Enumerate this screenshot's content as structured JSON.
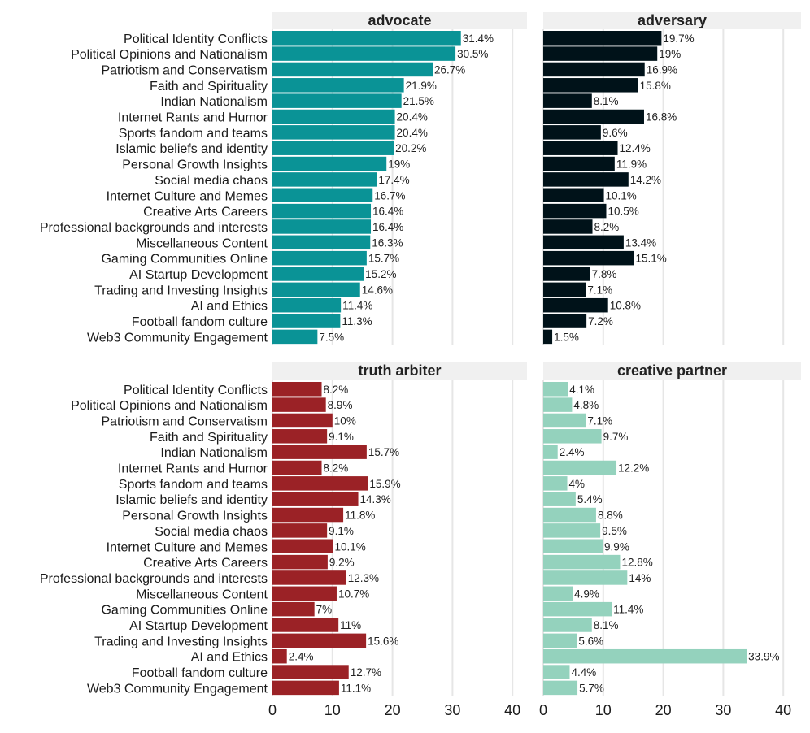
{
  "chart_data": {
    "type": "bar",
    "orientation": "horizontal",
    "facets": "2x2",
    "xlim": [
      0,
      42
    ],
    "xticks": [
      0,
      10,
      20,
      30,
      40
    ],
    "grid": true,
    "value_suffix": "%",
    "categories": [
      "Political Identity Conflicts",
      "Political Opinions and Nationalism",
      "Patriotism and Conservatism",
      "Faith and Spirituality",
      "Indian Nationalism",
      "Internet Rants and Humor",
      "Sports fandom and teams",
      "Islamic beliefs and identity",
      "Personal Growth Insights",
      "Social media chaos",
      "Internet Culture and Memes",
      "Creative Arts Careers",
      "Professional backgrounds and interests",
      "Miscellaneous Content",
      "Gaming Communities Online",
      "AI Startup Development",
      "Trading and Investing Insights",
      "AI and Ethics",
      "Football fandom culture",
      "Web3 Community Engagement"
    ],
    "series": [
      {
        "name": "advocate",
        "color": "#0a9396",
        "values": [
          31.4,
          30.5,
          26.7,
          21.9,
          21.5,
          20.4,
          20.4,
          20.2,
          19,
          17.4,
          16.7,
          16.4,
          16.4,
          16.3,
          15.7,
          15.2,
          14.6,
          11.4,
          11.3,
          7.5
        ]
      },
      {
        "name": "adversary",
        "color": "#001219",
        "values": [
          19.7,
          19,
          16.9,
          15.8,
          8.1,
          16.8,
          9.6,
          12.4,
          11.9,
          14.2,
          10.1,
          10.5,
          8.2,
          13.4,
          15.1,
          7.8,
          7.1,
          10.8,
          7.2,
          1.5
        ]
      },
      {
        "name": "truth arbiter",
        "color": "#9b2226",
        "values": [
          8.2,
          8.9,
          10,
          9.1,
          15.7,
          8.2,
          15.9,
          14.3,
          11.8,
          9.1,
          10.1,
          9.2,
          12.3,
          10.7,
          7,
          11,
          15.6,
          2.4,
          12.7,
          11.1
        ]
      },
      {
        "name": "creative partner",
        "color": "#94d2bd",
        "values": [
          4.1,
          4.8,
          7.1,
          9.7,
          2.4,
          12.2,
          4,
          5.4,
          8.8,
          9.5,
          9.9,
          12.8,
          14,
          4.9,
          11.4,
          8.1,
          5.6,
          33.9,
          4.4,
          5.7
        ]
      }
    ]
  }
}
